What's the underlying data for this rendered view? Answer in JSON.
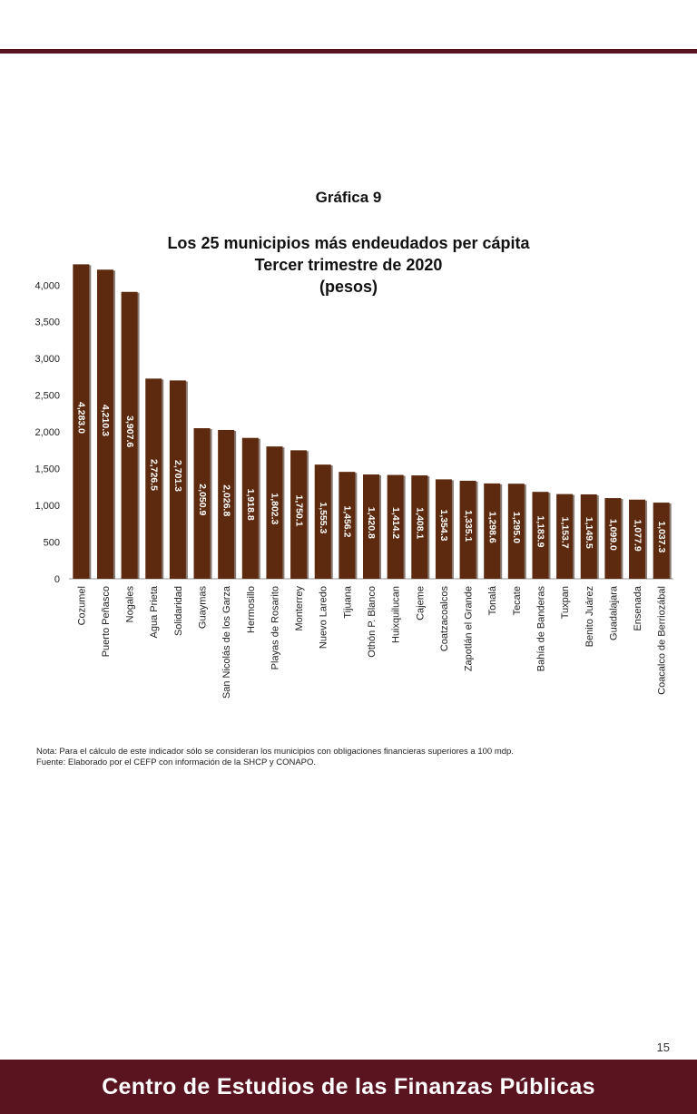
{
  "header": {
    "rule_color": "#5a1420"
  },
  "chart_label": "Gráfica 9",
  "chart_data": {
    "type": "bar",
    "title_lines": [
      "Los 25 municipios más endeudados per cápita",
      "Tercer trimestre de 2020",
      "(pesos)"
    ],
    "categories": [
      "Cozumel",
      "Puerto Peñasco",
      "Nogales",
      "Agua Prieta",
      "Solidaridad",
      "Guaymas",
      "San Nicolás de los Garza",
      "Hermosillo",
      "Playas de Rosarito",
      "Monterrey",
      "Nuevo Laredo",
      "Tijuana",
      "Othón P. Blanco",
      "Huixquilucan",
      "Cajeme",
      "Coatzacoalcos",
      "Zapotlán el Grande",
      "Tonalá",
      "Tecate",
      "Bahía de Banderas",
      "Tuxpan",
      "Benito Juárez",
      "Guadalajara",
      "Ensenada",
      "Coacalco de Berriozábal"
    ],
    "values": [
      4283.0,
      4210.3,
      3907.6,
      2726.5,
      2701.3,
      2050.9,
      2026.8,
      1918.8,
      1802.3,
      1750.1,
      1555.3,
      1456.2,
      1420.8,
      1414.2,
      1408.1,
      1354.3,
      1335.1,
      1298.6,
      1295.0,
      1183.9,
      1153.7,
      1149.5,
      1099.0,
      1077.9,
      1037.3
    ],
    "value_labels": [
      "4,283.0",
      "4,210.3",
      "3,907.6",
      "2,726.5",
      "2,701.3",
      "2,050.9",
      "2,026.8",
      "1,918.8",
      "1,802.3",
      "1,750.1",
      "1,555.3",
      "1,456.2",
      "1,420.8",
      "1,414.2",
      "1,408.1",
      "1,354.3",
      "1,335.1",
      "1,298.6",
      "1,295.0",
      "1,183.9",
      "1,153.7",
      "1,149.5",
      "1,099.0",
      "1,077.9",
      "1,037.3"
    ],
    "yticks": [
      0,
      500,
      1000,
      1500,
      2000,
      2500,
      3000,
      3500,
      4000
    ],
    "ytick_labels": [
      "0",
      "500",
      "1,000",
      "1,500",
      "2,000",
      "2,500",
      "3,000",
      "3,500",
      "4,000"
    ],
    "ylim": [
      0,
      4300
    ],
    "grid": false,
    "legend": "none",
    "bar_color": "#5e2a0f"
  },
  "notes": {
    "nota": "Nota: Para el cálculo de este indicador sólo se consideran los municipios con obligaciones financieras superiores a 100 mdp.",
    "fuente": "Fuente: Elaborado por el CEFP con información de la SHCP y CONAPO."
  },
  "page_number": "15",
  "footer": {
    "text": "Centro de Estudios de las Finanzas Públicas",
    "color": "#5a1420"
  }
}
